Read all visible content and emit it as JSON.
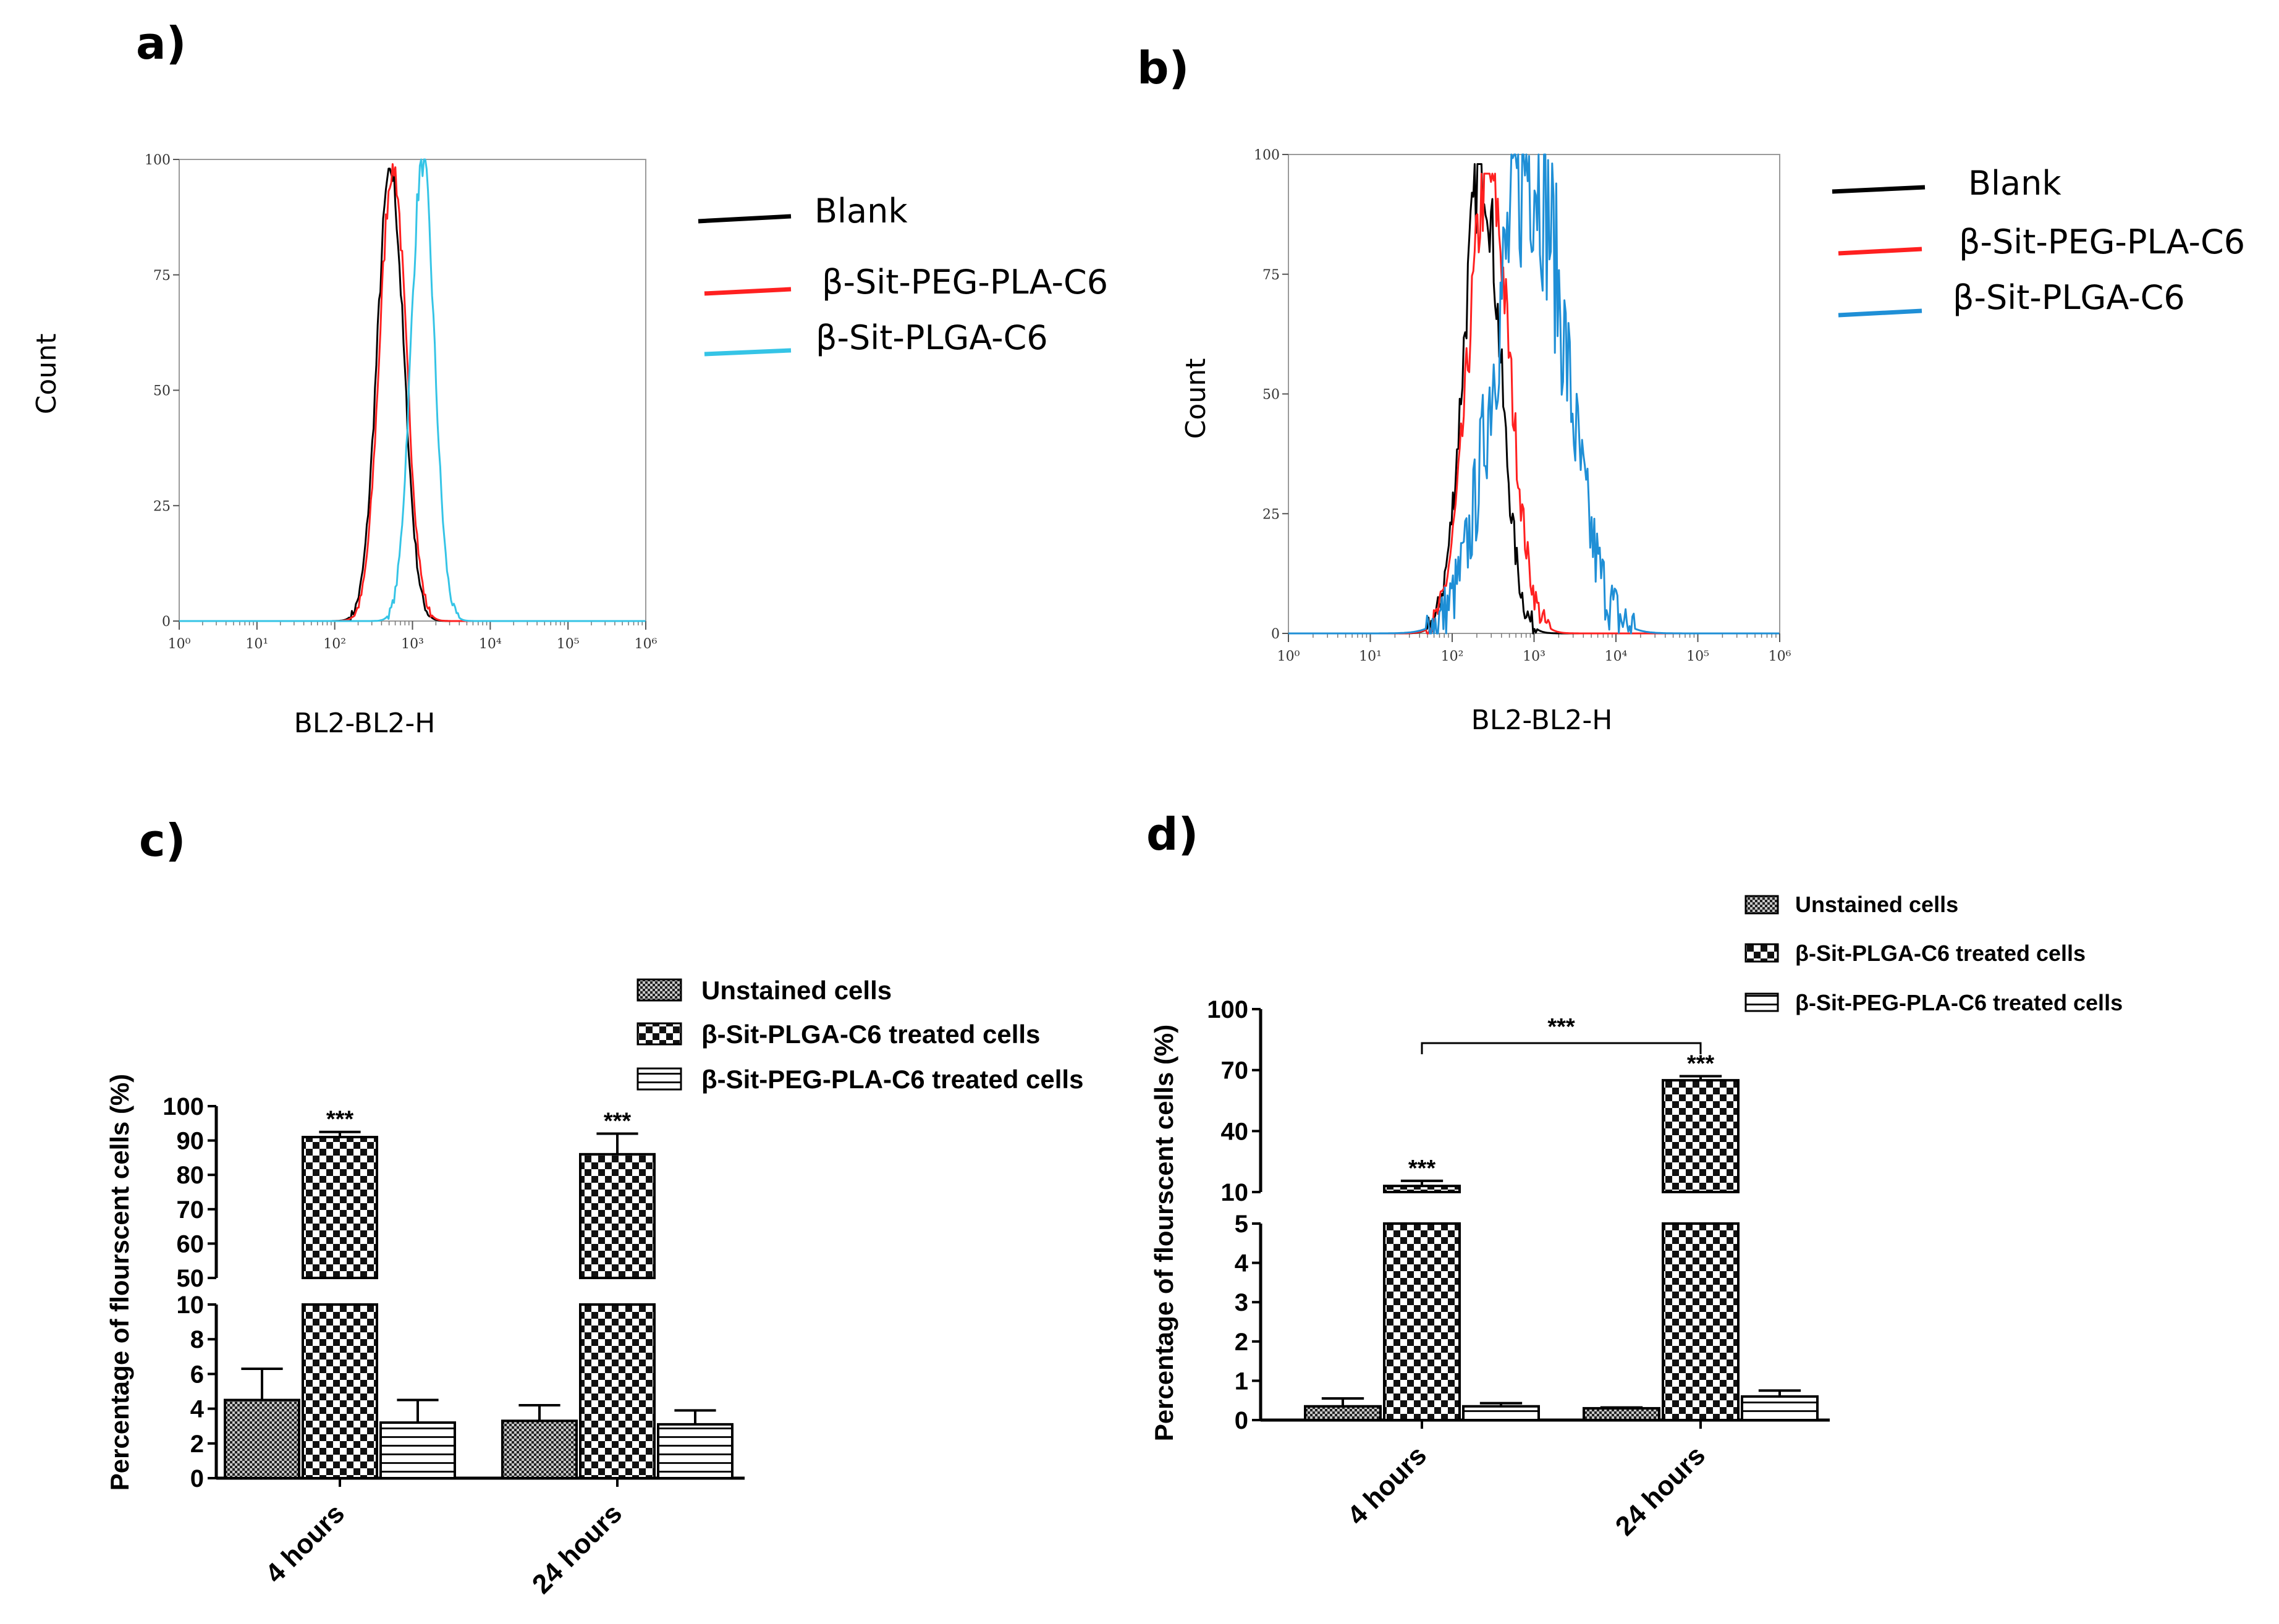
{
  "colors": {
    "blank": "#000000",
    "peg": "#ff2020",
    "plga_a": "#35c4e6",
    "plga_b": "#1f8fd6"
  },
  "chart_data": [
    {
      "id": "a",
      "panel_label": "a)",
      "type": "line",
      "title": "",
      "xlabel": "BL2-BL2-H",
      "ylabel": "Count",
      "x_scale": "log",
      "xlim": [
        1,
        1000000
      ],
      "ylim": [
        0,
        100
      ],
      "x_tick_labels": [
        "10⁰",
        "10¹",
        "10²",
        "10³",
        "10⁴",
        "10⁵",
        "10⁶"
      ],
      "y_tick_labels": [
        "0",
        "25",
        "50",
        "75",
        "100"
      ],
      "series": [
        {
          "name": "Blank",
          "color": "#000000",
          "peak_x": 520,
          "peak_y": 98,
          "log_sd": 0.17,
          "noise": 3
        },
        {
          "name": "β-Sit-PEG-PLA-C6",
          "color": "#ff2020",
          "peak_x": 560,
          "peak_y": 99,
          "log_sd": 0.17,
          "noise": 3
        },
        {
          "name": "β-Sit-PLGA-C6",
          "color": "#35c4e6",
          "peak_x": 1350,
          "peak_y": 100,
          "log_sd": 0.15,
          "noise": 3
        }
      ],
      "legend": [
        "Blank",
        "β-Sit-PEG-PLA-C6",
        "β-Sit-PLGA-C6"
      ]
    },
    {
      "id": "b",
      "panel_label": "b)",
      "type": "line",
      "title": "",
      "xlabel": "BL2-BL2-H",
      "ylabel": "Count",
      "x_scale": "log",
      "xlim": [
        1,
        1000000
      ],
      "ylim": [
        0,
        100
      ],
      "x_tick_labels": [
        "10⁰",
        "10¹",
        "10²",
        "10³",
        "10⁴",
        "10⁵",
        "10⁶"
      ],
      "y_tick_labels": [
        "0",
        "25",
        "50",
        "75",
        "100"
      ],
      "series": [
        {
          "name": "Blank",
          "color": "#000000",
          "peak_x": 230,
          "peak_y": 98,
          "log_sd": 0.22,
          "noise": 8
        },
        {
          "name": "β-Sit-PEG-PLA-C6",
          "color": "#ff2020",
          "peak_x": 280,
          "peak_y": 96,
          "log_sd": 0.25,
          "noise": 8
        },
        {
          "name": "β-Sit-PLGA-C6",
          "color": "#1f8fd6",
          "peak_x": 900,
          "peak_y": 100,
          "log_sd": 0.42,
          "noise": 18
        }
      ],
      "legend": [
        "Blank",
        "β-Sit-PEG-PLA-C6",
        "β-Sit-PLGA-C6"
      ]
    },
    {
      "id": "c",
      "panel_label": "c)",
      "type": "bar",
      "title": "",
      "xlabel": "",
      "ylabel": "Percentage of flourscent cells (%)",
      "categories": [
        "4 hours",
        "24 hours"
      ],
      "broken_axis": {
        "lower": {
          "range": [
            0,
            10
          ],
          "ticks": [
            "0",
            "2",
            "4",
            "6",
            "8",
            "10"
          ]
        },
        "upper": {
          "range": [
            50,
            100
          ],
          "ticks": [
            "50",
            "60",
            "70",
            "80",
            "90",
            "100"
          ]
        }
      },
      "series": [
        {
          "name": "Unstained cells",
          "pattern": "dense-check",
          "values": [
            4.5,
            3.3
          ],
          "errors": [
            1.8,
            0.9
          ]
        },
        {
          "name": "β-Sit-PLGA-C6 treated cells",
          "pattern": "checker",
          "values": [
            91,
            86
          ],
          "errors": [
            1.5,
            6
          ]
        },
        {
          "name": "β-Sit-PEG-PLA-C6 treated cells",
          "pattern": "hstripe",
          "values": [
            3.2,
            3.1
          ],
          "errors": [
            1.3,
            0.8
          ]
        }
      ],
      "annotations": [
        "***",
        "***"
      ]
    },
    {
      "id": "d",
      "panel_label": "d)",
      "type": "bar",
      "title": "",
      "xlabel": "",
      "ylabel": "Percentage of flourscent cells (%)",
      "categories": [
        "4 hours",
        "24 hours"
      ],
      "broken_axis": {
        "lower": {
          "range": [
            0,
            5
          ],
          "ticks": [
            "0",
            "1",
            "2",
            "3",
            "4",
            "5"
          ]
        },
        "upper": {
          "range": [
            10,
            100
          ],
          "ticks": [
            "10",
            "40",
            "70",
            "100"
          ]
        }
      },
      "series": [
        {
          "name": "Unstained cells",
          "pattern": "dense-check",
          "values": [
            0.35,
            0.3
          ],
          "errors": [
            0.2,
            0.02
          ]
        },
        {
          "name": "β-Sit-PLGA-C6 treated cells",
          "pattern": "checker",
          "values": [
            13,
            65
          ],
          "errors": [
            2.5,
            2
          ]
        },
        {
          "name": "β-Sit-PEG-PLA-C6 treated cells",
          "pattern": "hstripe",
          "values": [
            0.35,
            0.6
          ],
          "errors": [
            0.08,
            0.15
          ]
        }
      ],
      "annotations": [
        "***",
        "***",
        "***"
      ]
    }
  ]
}
